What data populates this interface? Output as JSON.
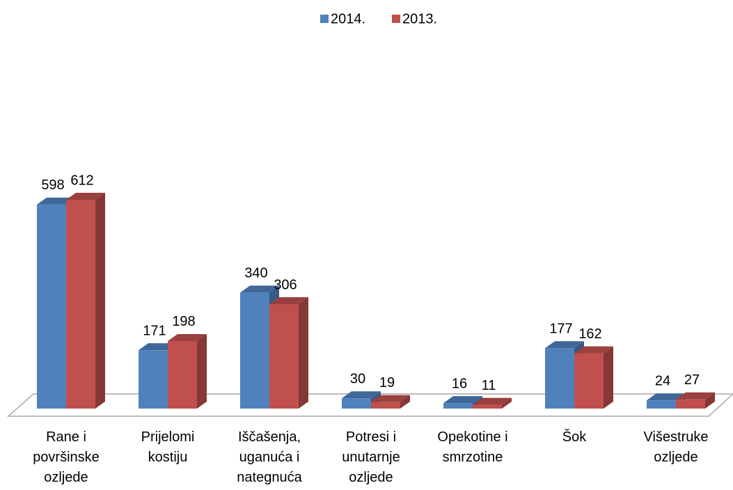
{
  "chart_data": {
    "type": "bar3d",
    "categories": [
      "Rane i površinske ozljede",
      "Prijelomi kostiju",
      "Iščašenja, uganuća i nategnuća",
      "Potresi i unutarnje ozljede",
      "Opekotine i smrzotine",
      "Šok",
      "Višestruke ozljede"
    ],
    "series": [
      {
        "name": "2014.",
        "color": "#4f81bd",
        "values": [
          598,
          171,
          340,
          30,
          16,
          177,
          24
        ]
      },
      {
        "name": "2013.",
        "color": "#c0504d",
        "values": [
          612,
          198,
          306,
          19,
          11,
          162,
          27
        ]
      }
    ],
    "legend": "top"
  }
}
